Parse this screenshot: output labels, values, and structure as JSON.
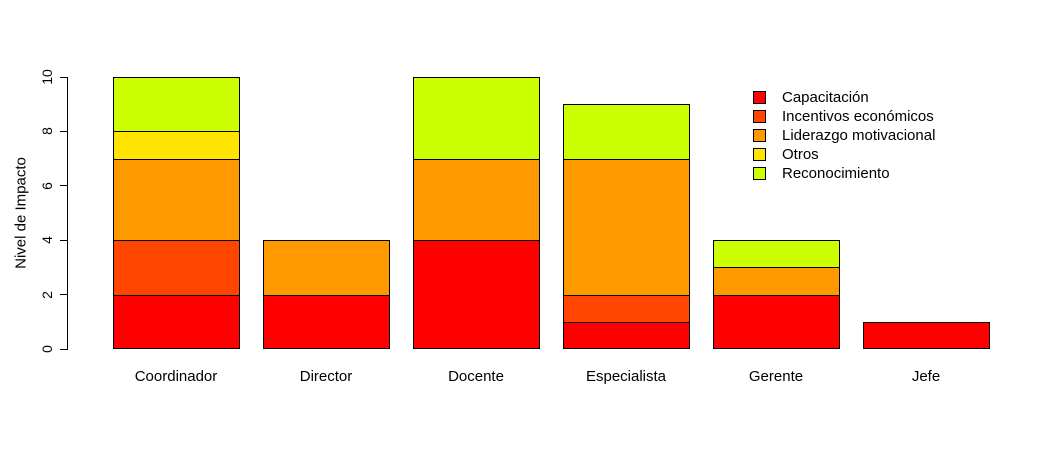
{
  "chart_data": {
    "type": "bar",
    "stacked": true,
    "title": "",
    "xlabel": "",
    "ylabel": "Nivel de Impacto",
    "ylim": [
      0,
      10
    ],
    "yticks": [
      0,
      2,
      4,
      6,
      8,
      10
    ],
    "grid": false,
    "legend_position": "top-right",
    "bar_border_color": "#000000",
    "background_color": "#ffffff",
    "categories": [
      "Coordinador",
      "Director",
      "Docente",
      "Especialista",
      "Gerente",
      "Jefe"
    ],
    "series": [
      {
        "name": "Capacitación",
        "color": "#FF0000",
        "values": [
          2,
          2,
          4,
          1,
          2,
          1
        ]
      },
      {
        "name": "Incentivos económicos",
        "color": "#FF4500",
        "values": [
          2,
          0,
          0,
          1,
          0,
          0
        ]
      },
      {
        "name": "Liderazgo motivacional",
        "color": "#FF9900",
        "values": [
          3,
          2,
          3,
          5,
          1,
          0
        ]
      },
      {
        "name": "Otros",
        "color": "#FFE400",
        "values": [
          1,
          0,
          0,
          0,
          0,
          0
        ]
      },
      {
        "name": "Reconocimiento",
        "color": "#CCFF00",
        "values": [
          2,
          0,
          3,
          2,
          1,
          0
        ]
      }
    ],
    "stack_totals": [
      10,
      4,
      10,
      9,
      4,
      1
    ]
  }
}
